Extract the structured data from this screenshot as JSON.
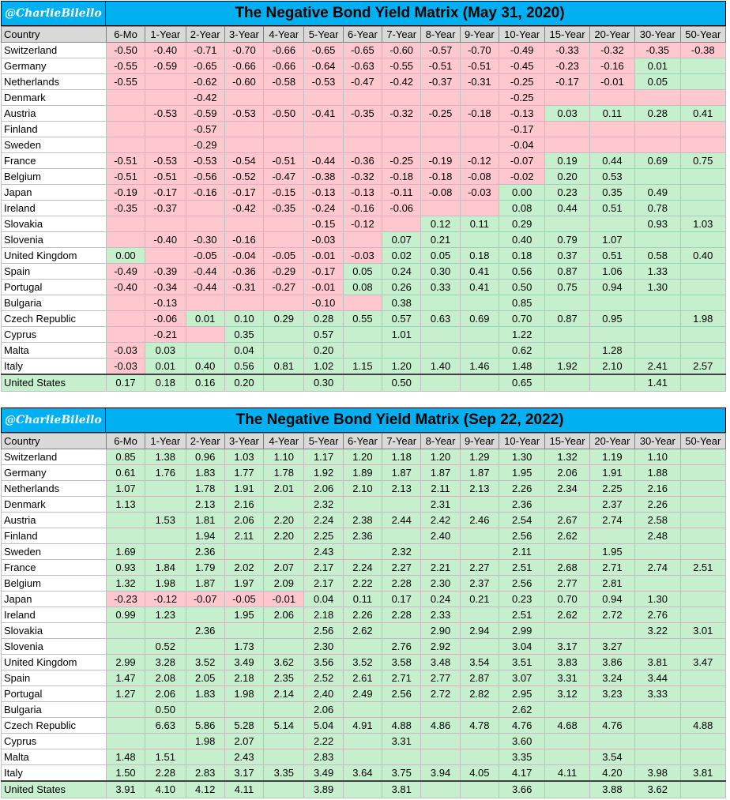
{
  "colors": {
    "negative": "#ffc7ce",
    "positive": "#c6efce",
    "header_bg": "#00b0f0",
    "column_header_bg": "#d9d9d9"
  },
  "chart_data": [
    {
      "type": "table",
      "handle": "@CharlieBilello",
      "title": "The Negative Bond Yield Matrix (May 31, 2020)",
      "header": [
        "Country",
        "6-Mo",
        "1-Year",
        "2-Year",
        "3-Year",
        "4-Year",
        "5-Year",
        "6-Year",
        "7-Year",
        "8-Year",
        "9-Year",
        "10-Year",
        "15-Year",
        "20-Year",
        "30-Year",
        "50-Year"
      ],
      "rows": [
        {
          "country": "Switzerland",
          "values": [
            -0.5,
            -0.4,
            -0.71,
            -0.7,
            -0.66,
            -0.65,
            -0.65,
            -0.6,
            -0.57,
            -0.7,
            -0.49,
            -0.33,
            -0.32,
            -0.35,
            -0.38
          ]
        },
        {
          "country": "Germany",
          "values": [
            -0.55,
            -0.59,
            -0.65,
            -0.66,
            -0.66,
            -0.64,
            -0.63,
            -0.55,
            -0.51,
            -0.51,
            -0.45,
            -0.23,
            -0.16,
            0.01,
            null
          ]
        },
        {
          "country": "Netherlands",
          "values": [
            -0.55,
            null,
            -0.62,
            -0.6,
            -0.58,
            -0.53,
            -0.47,
            -0.42,
            -0.37,
            -0.31,
            -0.25,
            -0.17,
            -0.01,
            0.05,
            null
          ]
        },
        {
          "country": "Denmark",
          "values": [
            null,
            null,
            -0.42,
            null,
            null,
            null,
            null,
            null,
            null,
            null,
            -0.25,
            null,
            null,
            null,
            null
          ]
        },
        {
          "country": "Austria",
          "values": [
            null,
            -0.53,
            -0.59,
            -0.53,
            -0.5,
            -0.41,
            -0.35,
            -0.32,
            -0.25,
            -0.18,
            -0.13,
            0.03,
            0.11,
            0.28,
            0.41
          ]
        },
        {
          "country": "Finland",
          "values": [
            null,
            null,
            -0.57,
            null,
            null,
            null,
            null,
            null,
            null,
            null,
            -0.17,
            null,
            null,
            null,
            null
          ]
        },
        {
          "country": "Sweden",
          "values": [
            null,
            null,
            -0.29,
            null,
            null,
            null,
            null,
            null,
            null,
            null,
            -0.04,
            null,
            null,
            null,
            null
          ]
        },
        {
          "country": "France",
          "values": [
            -0.51,
            -0.53,
            -0.53,
            -0.54,
            -0.51,
            -0.44,
            -0.36,
            -0.25,
            -0.19,
            -0.12,
            -0.07,
            0.19,
            0.44,
            0.69,
            0.75
          ]
        },
        {
          "country": "Belgium",
          "values": [
            -0.51,
            -0.51,
            -0.56,
            -0.52,
            -0.47,
            -0.38,
            -0.32,
            -0.18,
            -0.18,
            -0.08,
            -0.02,
            0.2,
            0.53,
            null,
            null
          ]
        },
        {
          "country": "Japan",
          "values": [
            -0.19,
            -0.17,
            -0.16,
            -0.17,
            -0.15,
            -0.13,
            -0.13,
            -0.11,
            -0.08,
            -0.03,
            0.0,
            0.23,
            0.35,
            0.49,
            null
          ]
        },
        {
          "country": "Ireland",
          "values": [
            -0.35,
            -0.37,
            null,
            -0.42,
            -0.35,
            -0.24,
            -0.16,
            -0.06,
            null,
            null,
            0.08,
            0.44,
            0.51,
            0.78,
            null
          ]
        },
        {
          "country": "Slovakia",
          "values": [
            null,
            null,
            null,
            null,
            null,
            -0.15,
            -0.12,
            null,
            0.12,
            0.11,
            0.29,
            null,
            null,
            0.93,
            1.03
          ]
        },
        {
          "country": "Slovenia",
          "values": [
            null,
            -0.4,
            -0.3,
            -0.16,
            null,
            -0.03,
            null,
            0.07,
            0.21,
            null,
            0.4,
            0.79,
            1.07,
            null,
            null
          ]
        },
        {
          "country": "United Kingdom",
          "values": [
            0.0,
            null,
            -0.05,
            -0.04,
            -0.05,
            -0.01,
            -0.03,
            0.02,
            0.05,
            0.18,
            0.18,
            0.37,
            0.51,
            0.58,
            0.4
          ]
        },
        {
          "country": "Spain",
          "values": [
            -0.49,
            -0.39,
            -0.44,
            -0.36,
            -0.29,
            -0.17,
            0.05,
            0.24,
            0.3,
            0.41,
            0.56,
            0.87,
            1.06,
            1.33,
            null
          ]
        },
        {
          "country": "Portugal",
          "values": [
            -0.4,
            -0.34,
            -0.44,
            -0.31,
            -0.27,
            -0.01,
            0.08,
            0.26,
            0.33,
            0.41,
            0.5,
            0.75,
            0.94,
            1.3,
            null
          ]
        },
        {
          "country": "Bulgaria",
          "values": [
            null,
            -0.13,
            null,
            null,
            null,
            -0.1,
            null,
            0.38,
            null,
            null,
            0.85,
            null,
            null,
            null,
            null
          ]
        },
        {
          "country": "Czech Republic",
          "values": [
            null,
            -0.06,
            0.01,
            0.1,
            0.29,
            0.28,
            0.55,
            0.57,
            0.63,
            0.69,
            0.7,
            0.87,
            0.95,
            null,
            1.98
          ]
        },
        {
          "country": "Cyprus",
          "values": [
            null,
            -0.21,
            null,
            0.35,
            null,
            0.57,
            null,
            1.01,
            null,
            null,
            1.22,
            null,
            null,
            null,
            null
          ]
        },
        {
          "country": "Malta",
          "values": [
            -0.03,
            0.03,
            null,
            0.04,
            null,
            0.2,
            null,
            null,
            null,
            null,
            0.62,
            null,
            1.28,
            null,
            null
          ]
        },
        {
          "country": "Italy",
          "values": [
            -0.03,
            0.01,
            0.4,
            0.56,
            0.81,
            1.02,
            1.15,
            1.2,
            1.4,
            1.46,
            1.48,
            1.92,
            2.1,
            2.41,
            2.57
          ]
        },
        {
          "country": "United States",
          "values": [
            0.17,
            0.18,
            0.16,
            0.2,
            null,
            0.3,
            null,
            0.5,
            null,
            null,
            0.65,
            null,
            null,
            1.41,
            null
          ]
        }
      ]
    },
    {
      "type": "table",
      "handle": "@CharlieBilello",
      "title": "The Negative Bond Yield Matrix (Sep 22, 2022)",
      "header": [
        "Country",
        "6-Mo",
        "1-Year",
        "2-Year",
        "3-Year",
        "4-Year",
        "5-Year",
        "6-Year",
        "7-Year",
        "8-Year",
        "9-Year",
        "10-Year",
        "15-Year",
        "20-Year",
        "30-Year",
        "50-Year"
      ],
      "rows": [
        {
          "country": "Switzerland",
          "values": [
            0.85,
            1.38,
            0.96,
            1.03,
            1.1,
            1.17,
            1.2,
            1.18,
            1.2,
            1.29,
            1.3,
            1.32,
            1.19,
            1.1,
            null
          ]
        },
        {
          "country": "Germany",
          "values": [
            0.61,
            1.76,
            1.83,
            1.77,
            1.78,
            1.92,
            1.89,
            1.87,
            1.87,
            1.87,
            1.95,
            2.06,
            1.91,
            1.88,
            null
          ]
        },
        {
          "country": "Netherlands",
          "values": [
            1.07,
            null,
            1.78,
            1.91,
            2.01,
            2.06,
            2.1,
            2.13,
            2.11,
            2.13,
            2.26,
            2.34,
            2.25,
            2.16,
            null
          ]
        },
        {
          "country": "Denmark",
          "values": [
            1.13,
            null,
            2.13,
            2.16,
            null,
            2.32,
            null,
            null,
            2.31,
            null,
            2.36,
            null,
            2.37,
            2.26,
            null
          ]
        },
        {
          "country": "Austria",
          "values": [
            null,
            1.53,
            1.81,
            2.06,
            2.2,
            2.24,
            2.38,
            2.44,
            2.42,
            2.46,
            2.54,
            2.67,
            2.74,
            2.58,
            null
          ]
        },
        {
          "country": "Finland",
          "values": [
            null,
            null,
            1.94,
            2.11,
            2.2,
            2.25,
            2.36,
            null,
            2.4,
            null,
            2.56,
            2.62,
            null,
            2.48,
            null
          ]
        },
        {
          "country": "Sweden",
          "values": [
            1.69,
            null,
            2.36,
            null,
            null,
            2.43,
            null,
            2.32,
            null,
            null,
            2.11,
            null,
            1.95,
            null,
            null
          ]
        },
        {
          "country": "France",
          "values": [
            0.93,
            1.84,
            1.79,
            2.02,
            2.07,
            2.17,
            2.24,
            2.27,
            2.21,
            2.27,
            2.51,
            2.68,
            2.71,
            2.74,
            2.51
          ]
        },
        {
          "country": "Belgium",
          "values": [
            1.32,
            1.98,
            1.87,
            1.97,
            2.09,
            2.17,
            2.22,
            2.28,
            2.3,
            2.37,
            2.56,
            2.77,
            2.81,
            null,
            null
          ]
        },
        {
          "country": "Japan",
          "values": [
            -0.23,
            -0.12,
            -0.07,
            -0.05,
            -0.01,
            0.04,
            0.11,
            0.17,
            0.24,
            0.21,
            0.23,
            0.7,
            0.94,
            1.3,
            null
          ]
        },
        {
          "country": "Ireland",
          "values": [
            0.99,
            1.23,
            null,
            1.95,
            2.06,
            2.18,
            2.26,
            2.28,
            2.33,
            null,
            2.51,
            2.62,
            2.72,
            2.76,
            null
          ]
        },
        {
          "country": "Slovakia",
          "values": [
            null,
            null,
            2.36,
            null,
            null,
            2.56,
            2.62,
            null,
            2.9,
            2.94,
            2.99,
            null,
            null,
            3.22,
            3.01
          ]
        },
        {
          "country": "Slovenia",
          "values": [
            null,
            0.52,
            null,
            1.73,
            null,
            2.3,
            null,
            2.76,
            2.92,
            null,
            3.04,
            3.17,
            3.27,
            null,
            null
          ]
        },
        {
          "country": "United Kingdom",
          "values": [
            2.99,
            3.28,
            3.52,
            3.49,
            3.62,
            3.56,
            3.52,
            3.58,
            3.48,
            3.54,
            3.51,
            3.83,
            3.86,
            3.81,
            3.47
          ]
        },
        {
          "country": "Spain",
          "values": [
            1.47,
            2.08,
            2.05,
            2.18,
            2.35,
            2.52,
            2.61,
            2.71,
            2.77,
            2.87,
            3.07,
            3.31,
            3.24,
            3.44,
            null
          ]
        },
        {
          "country": "Portugal",
          "values": [
            1.27,
            2.06,
            1.83,
            1.98,
            2.14,
            2.4,
            2.49,
            2.56,
            2.72,
            2.82,
            2.95,
            3.12,
            3.23,
            3.33,
            null
          ]
        },
        {
          "country": "Bulgaria",
          "values": [
            null,
            0.5,
            null,
            null,
            null,
            2.06,
            null,
            null,
            null,
            null,
            2.62,
            null,
            null,
            null,
            null
          ]
        },
        {
          "country": "Czech Republic",
          "values": [
            null,
            6.63,
            5.86,
            5.28,
            5.14,
            5.04,
            4.91,
            4.88,
            4.86,
            4.78,
            4.76,
            4.68,
            4.76,
            null,
            4.88
          ]
        },
        {
          "country": "Cyprus",
          "values": [
            null,
            null,
            1.98,
            2.07,
            null,
            2.22,
            null,
            3.31,
            null,
            null,
            3.6,
            null,
            null,
            null,
            null
          ]
        },
        {
          "country": "Malta",
          "values": [
            1.48,
            1.51,
            null,
            2.43,
            null,
            2.83,
            null,
            null,
            null,
            null,
            3.35,
            null,
            3.54,
            null,
            null
          ]
        },
        {
          "country": "Italy",
          "values": [
            1.5,
            2.28,
            2.83,
            3.17,
            3.35,
            3.49,
            3.64,
            3.75,
            3.94,
            4.05,
            4.17,
            4.11,
            4.2,
            3.98,
            3.81
          ]
        },
        {
          "country": "United States",
          "values": [
            3.91,
            4.1,
            4.12,
            4.11,
            null,
            3.89,
            null,
            3.81,
            null,
            null,
            3.66,
            null,
            3.88,
            3.62,
            null
          ]
        }
      ]
    }
  ]
}
